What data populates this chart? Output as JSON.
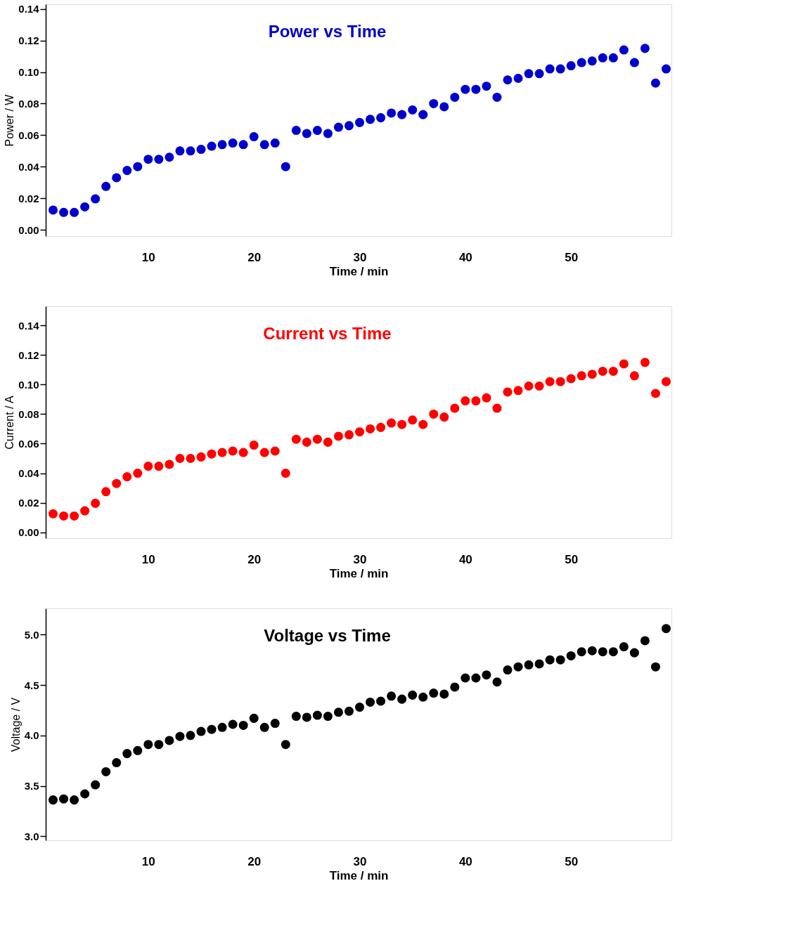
{
  "chart_data": [
    {
      "type": "scatter",
      "title": "Power vs Time",
      "xlabel": "Time / min",
      "ylabel": "Power / W",
      "marker": "circle",
      "grid": false,
      "xlim": [
        0.3,
        59.5
      ],
      "xticks": [
        10,
        20,
        30,
        40,
        50
      ],
      "ylim": [
        -0.004,
        0.143
      ],
      "yticks": [
        {
          "value": 0,
          "label": "0.00"
        },
        {
          "value": 0.02,
          "label": "0.02"
        },
        {
          "value": 0.04,
          "label": "0.04"
        },
        {
          "value": 0.06,
          "label": "0.06"
        },
        {
          "value": 0.08,
          "label": "0.08"
        },
        {
          "value": 0.1,
          "label": "0.10"
        },
        {
          "value": 0.12,
          "label": "0.12"
        },
        {
          "value": 0.14,
          "label": "0.14"
        }
      ],
      "x": [
        1,
        2,
        3,
        4,
        5,
        6,
        7,
        8,
        9,
        10,
        11,
        12,
        13,
        14,
        15,
        16,
        17,
        18,
        19,
        20,
        21,
        22,
        23,
        24,
        25,
        26,
        27,
        28,
        29,
        30,
        31,
        32,
        33,
        34,
        35,
        36,
        37,
        38,
        39,
        40,
        41,
        42,
        43,
        44,
        45,
        46,
        47,
        48,
        49,
        50,
        51,
        52,
        53,
        54,
        55,
        56,
        57,
        58,
        59
      ],
      "series": [
        {
          "color": "#0000cc",
          "values": [
            0.0125,
            0.011,
            0.011,
            0.0145,
            0.0196,
            0.0275,
            0.033,
            0.0376,
            0.04,
            0.0447,
            0.0447,
            0.046,
            0.05,
            0.05,
            0.051,
            0.053,
            0.054,
            0.055,
            0.054,
            0.059,
            0.054,
            0.055,
            0.04,
            0.063,
            0.061,
            0.063,
            0.061,
            0.065,
            0.066,
            0.068,
            0.07,
            0.071,
            0.074,
            0.073,
            0.076,
            0.073,
            0.08,
            0.078,
            0.084,
            0.089,
            0.089,
            0.091,
            0.084,
            0.095,
            0.096,
            0.099,
            0.099,
            0.102,
            0.102,
            0.104,
            0.106,
            0.107,
            0.109,
            0.109,
            0.114,
            0.106,
            0.115,
            0.093,
            0.102
          ]
        }
      ]
    },
    {
      "type": "scatter",
      "title": "Current vs Time",
      "xlabel": "Time / min",
      "ylabel": "Current / A",
      "marker": "circle",
      "grid": false,
      "xlim": [
        0.3,
        59.5
      ],
      "xticks": [
        10,
        20,
        30,
        40,
        50
      ],
      "ylim": [
        -0.004,
        0.153
      ],
      "yticks": [
        {
          "value": 0,
          "label": "0.00"
        },
        {
          "value": 0.02,
          "label": "0.02"
        },
        {
          "value": 0.04,
          "label": "0.04"
        },
        {
          "value": 0.06,
          "label": "0.06"
        },
        {
          "value": 0.08,
          "label": "0.08"
        },
        {
          "value": 0.1,
          "label": "0.10"
        },
        {
          "value": 0.12,
          "label": "0.12"
        },
        {
          "value": 0.14,
          "label": "0.14"
        }
      ],
      "x": [
        1,
        2,
        3,
        4,
        5,
        6,
        7,
        8,
        9,
        10,
        11,
        12,
        13,
        14,
        15,
        16,
        17,
        18,
        19,
        20,
        21,
        22,
        23,
        24,
        25,
        26,
        27,
        28,
        29,
        30,
        31,
        32,
        33,
        34,
        35,
        36,
        37,
        38,
        39,
        40,
        41,
        42,
        43,
        44,
        45,
        46,
        47,
        48,
        49,
        50,
        51,
        52,
        53,
        54,
        55,
        56,
        57,
        58,
        59
      ],
      "series": [
        {
          "color": "#ff0000",
          "values": [
            0.0125,
            0.011,
            0.011,
            0.0145,
            0.0196,
            0.0275,
            0.033,
            0.0376,
            0.04,
            0.0447,
            0.0447,
            0.046,
            0.05,
            0.05,
            0.051,
            0.053,
            0.054,
            0.055,
            0.054,
            0.059,
            0.054,
            0.055,
            0.04,
            0.063,
            0.061,
            0.063,
            0.061,
            0.065,
            0.066,
            0.068,
            0.07,
            0.071,
            0.074,
            0.073,
            0.076,
            0.073,
            0.08,
            0.078,
            0.084,
            0.089,
            0.089,
            0.091,
            0.084,
            0.095,
            0.096,
            0.099,
            0.099,
            0.102,
            0.102,
            0.104,
            0.106,
            0.107,
            0.109,
            0.109,
            0.114,
            0.106,
            0.115,
            0.094,
            0.102
          ]
        }
      ]
    },
    {
      "type": "scatter",
      "title": "Voltage vs Time",
      "xlabel": "Time / min",
      "ylabel": "Voltage / V",
      "marker": "circle",
      "grid": false,
      "xlim": [
        0.3,
        59.5
      ],
      "xticks": [
        10,
        20,
        30,
        40,
        50
      ],
      "ylim": [
        2.96,
        5.26
      ],
      "yticks": [
        {
          "value": 3,
          "label": "3.0"
        },
        {
          "value": 3.5,
          "label": "3.5"
        },
        {
          "value": 4,
          "label": "4.0"
        },
        {
          "value": 4.5,
          "label": "4.5"
        },
        {
          "value": 5,
          "label": "5.0"
        }
      ],
      "x": [
        1,
        2,
        3,
        4,
        5,
        6,
        7,
        8,
        9,
        10,
        11,
        12,
        13,
        14,
        15,
        16,
        17,
        18,
        19,
        20,
        21,
        22,
        23,
        24,
        25,
        26,
        27,
        28,
        29,
        30,
        31,
        32,
        33,
        34,
        35,
        36,
        37,
        38,
        39,
        40,
        41,
        42,
        43,
        44,
        45,
        46,
        47,
        48,
        49,
        50,
        51,
        52,
        53,
        54,
        55,
        56,
        57,
        58,
        59
      ],
      "series": [
        {
          "color": "#000000",
          "values": [
            3.36,
            3.37,
            3.36,
            3.42,
            3.51,
            3.64,
            3.73,
            3.82,
            3.85,
            3.91,
            3.91,
            3.95,
            3.99,
            4.0,
            4.04,
            4.06,
            4.08,
            4.11,
            4.1,
            4.17,
            4.08,
            4.12,
            3.91,
            4.19,
            4.18,
            4.2,
            4.19,
            4.23,
            4.24,
            4.28,
            4.33,
            4.34,
            4.39,
            4.36,
            4.4,
            4.38,
            4.42,
            4.41,
            4.48,
            4.57,
            4.57,
            4.6,
            4.53,
            4.65,
            4.68,
            4.7,
            4.71,
            4.75,
            4.75,
            4.79,
            4.83,
            4.84,
            4.83,
            4.83,
            4.88,
            4.82,
            4.94,
            4.68,
            5.06
          ]
        }
      ]
    }
  ]
}
